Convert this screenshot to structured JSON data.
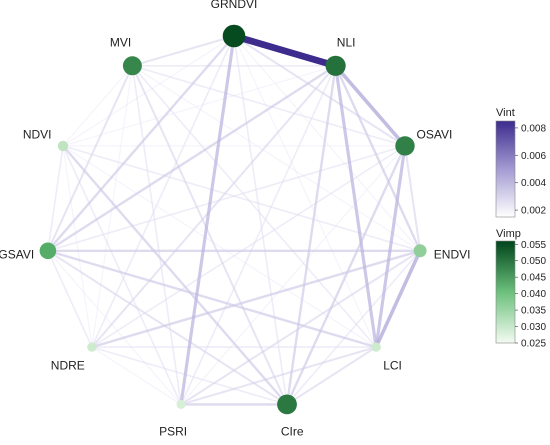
{
  "chart_data": {
    "type": "network",
    "nodes": [
      {
        "id": "GRNDVI",
        "label": "GRNDVI",
        "vimp": 0.055
      },
      {
        "id": "NLI",
        "label": "NLI",
        "vimp": 0.05
      },
      {
        "id": "OSAVI",
        "label": "OSAVI",
        "vimp": 0.048
      },
      {
        "id": "ENDVI",
        "label": "ENDVI",
        "vimp": 0.034
      },
      {
        "id": "LCI",
        "label": "LCI",
        "vimp": 0.026
      },
      {
        "id": "CIre",
        "label": "CIre",
        "vimp": 0.049
      },
      {
        "id": "PSRI",
        "label": "PSRI",
        "vimp": 0.025
      },
      {
        "id": "NDRE",
        "label": "NDRE",
        "vimp": 0.026
      },
      {
        "id": "GSAVI",
        "label": "GSAVI",
        "vimp": 0.042
      },
      {
        "id": "NDVI",
        "label": "NDVI",
        "vimp": 0.028
      },
      {
        "id": "MVI",
        "label": "MVI",
        "vimp": 0.047
      }
    ],
    "edges": [
      {
        "source": "GRNDVI",
        "target": "NLI",
        "vint": 0.0085
      },
      {
        "source": "NLI",
        "target": "OSAVI",
        "vint": 0.0045
      },
      {
        "source": "NLI",
        "target": "LCI",
        "vint": 0.004
      },
      {
        "source": "NLI",
        "target": "CIre",
        "vint": 0.003
      },
      {
        "source": "NLI",
        "target": "GSAVI",
        "vint": 0.003
      },
      {
        "source": "NLI",
        "target": "NDRE",
        "vint": 0.0025
      },
      {
        "source": "NLI",
        "target": "MVI",
        "vint": 0.002
      },
      {
        "source": "NLI",
        "target": "PSRI",
        "vint": 0.002
      },
      {
        "source": "NLI",
        "target": "ENDVI",
        "vint": 0.003
      },
      {
        "source": "NLI",
        "target": "NDVI",
        "vint": 0.0015
      },
      {
        "source": "GRNDVI",
        "target": "PSRI",
        "vint": 0.004
      },
      {
        "source": "GRNDVI",
        "target": "GSAVI",
        "vint": 0.003
      },
      {
        "source": "GRNDVI",
        "target": "MVI",
        "vint": 0.0025
      },
      {
        "source": "GRNDVI",
        "target": "OSAVI",
        "vint": 0.0025
      },
      {
        "source": "GRNDVI",
        "target": "CIre",
        "vint": 0.002
      },
      {
        "source": "GRNDVI",
        "target": "LCI",
        "vint": 0.0015
      },
      {
        "source": "GRNDVI",
        "target": "ENDVI",
        "vint": 0.0015
      },
      {
        "source": "GRNDVI",
        "target": "NDRE",
        "vint": 0.002
      },
      {
        "source": "GRNDVI",
        "target": "NDVI",
        "vint": 0.0015
      },
      {
        "source": "OSAVI",
        "target": "LCI",
        "vint": 0.004
      },
      {
        "source": "OSAVI",
        "target": "ENDVI",
        "vint": 0.0025
      },
      {
        "source": "OSAVI",
        "target": "CIre",
        "vint": 0.003
      },
      {
        "source": "OSAVI",
        "target": "NDRE",
        "vint": 0.002
      },
      {
        "source": "OSAVI",
        "target": "GSAVI",
        "vint": 0.002
      },
      {
        "source": "OSAVI",
        "target": "MVI",
        "vint": 0.002
      },
      {
        "source": "OSAVI",
        "target": "NDVI",
        "vint": 0.0015
      },
      {
        "source": "OSAVI",
        "target": "PSRI",
        "vint": 0.0015
      },
      {
        "source": "ENDVI",
        "target": "LCI",
        "vint": 0.0045
      },
      {
        "source": "ENDVI",
        "target": "GSAVI",
        "vint": 0.003
      },
      {
        "source": "ENDVI",
        "target": "NDRE",
        "vint": 0.003
      },
      {
        "source": "ENDVI",
        "target": "PSRI",
        "vint": 0.0025
      },
      {
        "source": "ENDVI",
        "target": "CIre",
        "vint": 0.002
      },
      {
        "source": "ENDVI",
        "target": "NDVI",
        "vint": 0.002
      },
      {
        "source": "ENDVI",
        "target": "MVI",
        "vint": 0.0015
      },
      {
        "source": "LCI",
        "target": "GSAVI",
        "vint": 0.003
      },
      {
        "source": "LCI",
        "target": "NDRE",
        "vint": 0.002
      },
      {
        "source": "LCI",
        "target": "PSRI",
        "vint": 0.0025
      },
      {
        "source": "LCI",
        "target": "CIre",
        "vint": 0.0025
      },
      {
        "source": "LCI",
        "target": "NDVI",
        "vint": 0.0015
      },
      {
        "source": "LCI",
        "target": "MVI",
        "vint": 0.002
      },
      {
        "source": "CIre",
        "target": "PSRI",
        "vint": 0.003
      },
      {
        "source": "CIre",
        "target": "NDVI",
        "vint": 0.003
      },
      {
        "source": "CIre",
        "target": "MVI",
        "vint": 0.0025
      },
      {
        "source": "CIre",
        "target": "NDRE",
        "vint": 0.002
      },
      {
        "source": "CIre",
        "target": "GSAVI",
        "vint": 0.0025
      },
      {
        "source": "PSRI",
        "target": "MVI",
        "vint": 0.002
      },
      {
        "source": "PSRI",
        "target": "NDVI",
        "vint": 0.002
      },
      {
        "source": "PSRI",
        "target": "GSAVI",
        "vint": 0.0015
      },
      {
        "source": "PSRI",
        "target": "NDRE",
        "vint": 0.0015
      },
      {
        "source": "NDRE",
        "target": "GSAVI",
        "vint": 0.002
      },
      {
        "source": "NDRE",
        "target": "NDVI",
        "vint": 0.0015
      },
      {
        "source": "NDRE",
        "target": "MVI",
        "vint": 0.0015
      },
      {
        "source": "GSAVI",
        "target": "NDVI",
        "vint": 0.002
      },
      {
        "source": "GSAVI",
        "target": "MVI",
        "vint": 0.0025
      },
      {
        "source": "NDVI",
        "target": "MVI",
        "vint": 0.0015
      }
    ],
    "legends": {
      "vint": {
        "title": "Vint",
        "range": [
          0.0015,
          0.0085
        ],
        "ticks": [
          0.002,
          0.004,
          0.006,
          0.008
        ],
        "tick_labels": [
          "0.002",
          "0.004",
          "0.006",
          "0.008"
        ],
        "color_low": "#ffffff",
        "color_high": "#3d2c8d"
      },
      "vimp": {
        "title": "Vimp",
        "range": [
          0.025,
          0.056
        ],
        "ticks": [
          0.025,
          0.03,
          0.035,
          0.04,
          0.045,
          0.05,
          0.055
        ],
        "tick_labels": [
          "0.025",
          "0.030",
          "0.035",
          "0.040",
          "0.045",
          "0.050",
          "0.055"
        ],
        "color_low": "#ffffff",
        "color_high": "#00441b"
      }
    }
  }
}
